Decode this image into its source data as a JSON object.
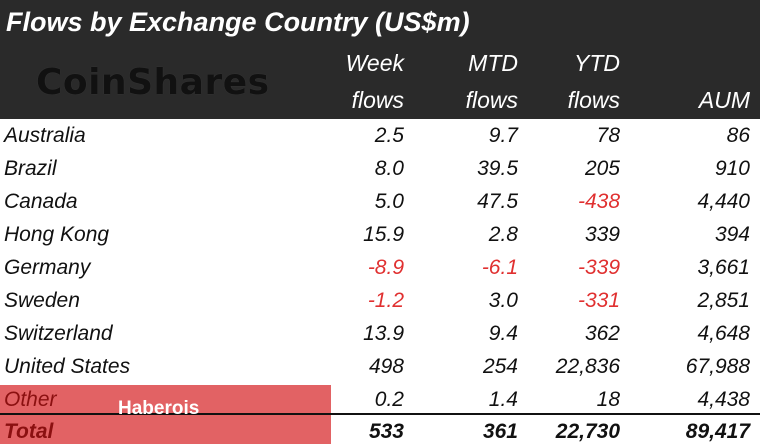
{
  "title": "Flows by Exchange Country (US$m)",
  "logo_text": "CoinShares",
  "headers": {
    "week_top": "Week",
    "week_bottom": "flows",
    "mtd_top": "MTD",
    "mtd_bottom": "flows",
    "ytd_top": "YTD",
    "ytd_bottom": "flows",
    "aum": "AUM"
  },
  "rows": [
    {
      "name": "Australia",
      "week": "2.5",
      "mtd": "9.7",
      "ytd": "78",
      "aum": "86"
    },
    {
      "name": "Brazil",
      "week": "8.0",
      "mtd": "39.5",
      "ytd": "205",
      "aum": "910"
    },
    {
      "name": "Canada",
      "week": "5.0",
      "mtd": "47.5",
      "ytd": "-438",
      "aum": "4,440"
    },
    {
      "name": "Hong Kong",
      "week": "15.9",
      "mtd": "2.8",
      "ytd": "339",
      "aum": "394"
    },
    {
      "name": "Germany",
      "week": "-8.9",
      "mtd": "-6.1",
      "ytd": "-339",
      "aum": "3,661"
    },
    {
      "name": "Sweden",
      "week": "-1.2",
      "mtd": "3.0",
      "ytd": "-331",
      "aum": "2,851"
    },
    {
      "name": "Switzerland",
      "week": "13.9",
      "mtd": "9.4",
      "ytd": "362",
      "aum": "4,648"
    },
    {
      "name": "United States",
      "week": "498",
      "mtd": "254",
      "ytd": "22,836",
      "aum": "67,988"
    },
    {
      "name": "Other",
      "week": "0.2",
      "mtd": "1.4",
      "ytd": "18",
      "aum": "4,438"
    }
  ],
  "total": {
    "name": "Total",
    "week": "533",
    "mtd": "361",
    "ytd": "22,730",
    "aum": "89,417"
  },
  "overlay_label": "Haberois",
  "colors": {
    "header_bg": "#2a2a2a",
    "negative": "#e03030",
    "highlight": "#e05557"
  }
}
